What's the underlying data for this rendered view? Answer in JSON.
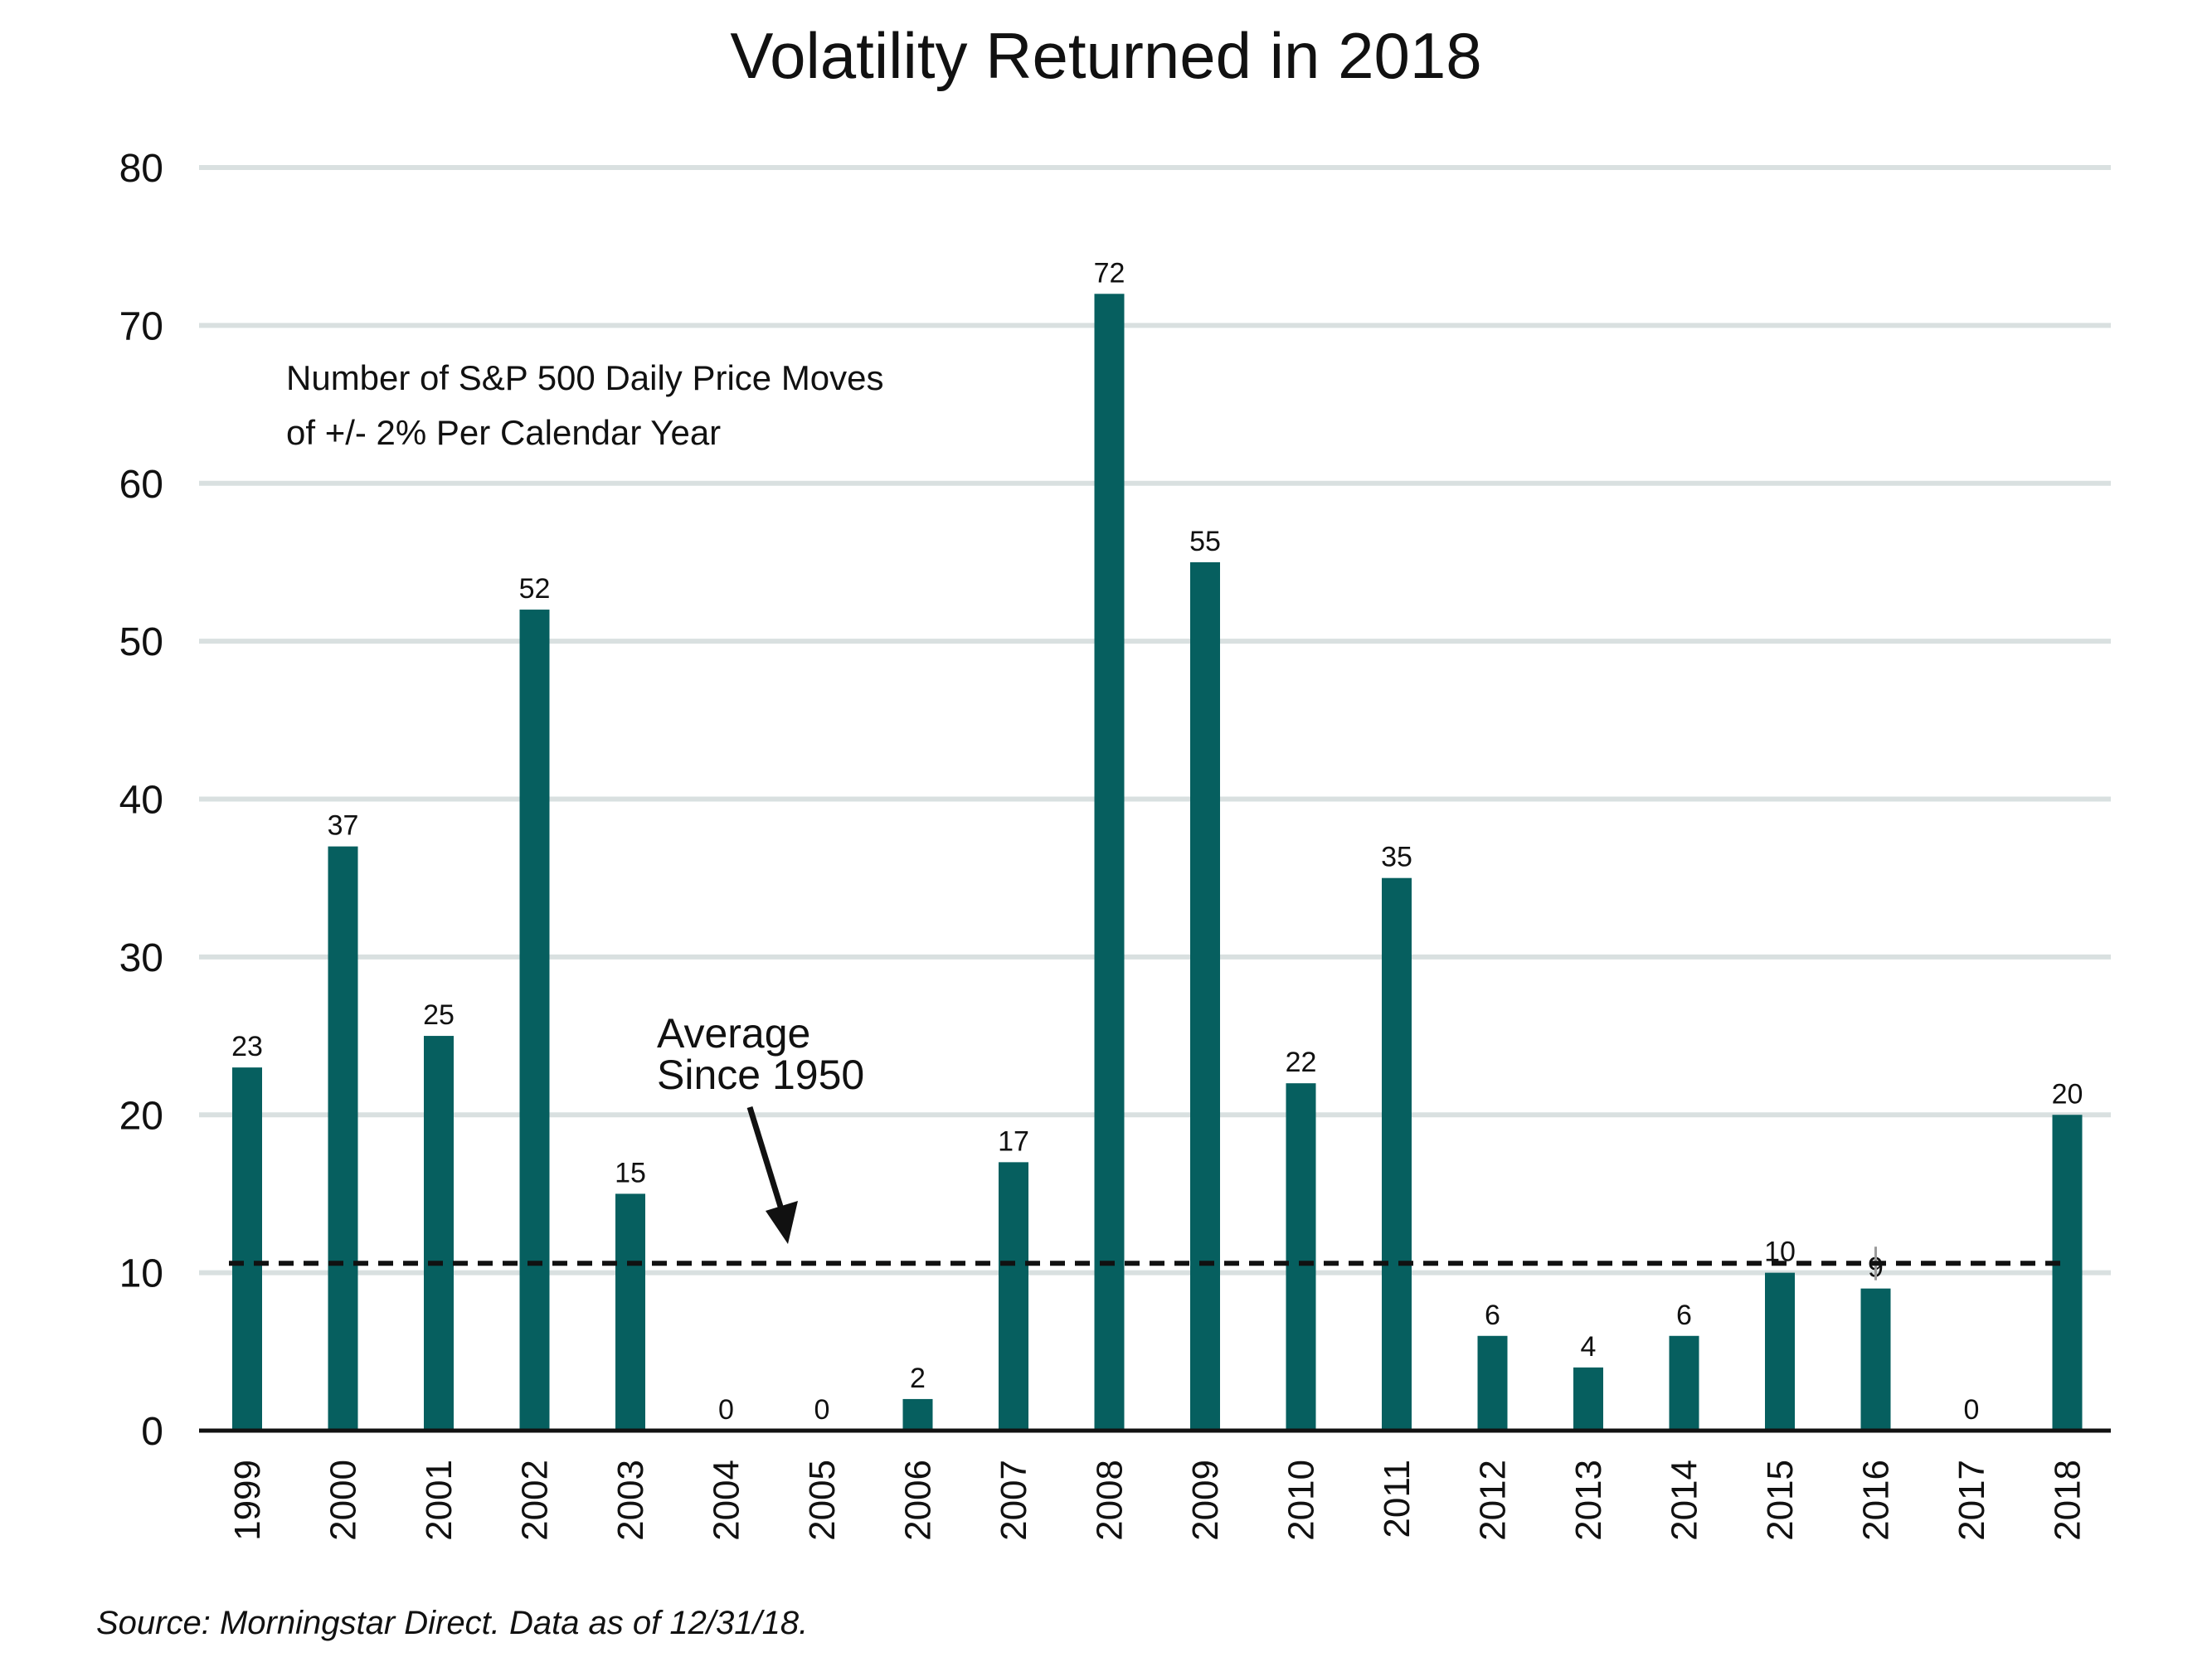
{
  "chart_data": {
    "type": "bar",
    "title": "Volatility Returned in 2018",
    "subtitle_lines": [
      "Number of S&P 500 Daily Price Moves",
      "of +/- 2% Per Calendar Year"
    ],
    "categories": [
      "1999",
      "2000",
      "2001",
      "2002",
      "2003",
      "2004",
      "2005",
      "2006",
      "2007",
      "2008",
      "2009",
      "2010",
      "2011",
      "2012",
      "2013",
      "2014",
      "2015",
      "2016",
      "2017",
      "2018"
    ],
    "values": [
      23,
      37,
      25,
      52,
      15,
      0,
      0,
      2,
      17,
      72,
      55,
      22,
      35,
      6,
      4,
      6,
      10,
      9,
      0,
      20
    ],
    "xlabel": "",
    "ylabel": "",
    "ylim": [
      0,
      80
    ],
    "yticks": [
      0,
      10,
      20,
      30,
      40,
      50,
      60,
      70,
      80
    ],
    "grid": true,
    "reference_line": {
      "value": 10.6,
      "label_lines": [
        "Average",
        "Since 1950"
      ],
      "style": "dashed"
    },
    "colors": {
      "bar": "#065f5f",
      "grid": "#d9e0e0",
      "axis": "#111111",
      "reference": "#111111"
    }
  },
  "source": "Source: Morningstar Direct. Data as of 12/31/18."
}
